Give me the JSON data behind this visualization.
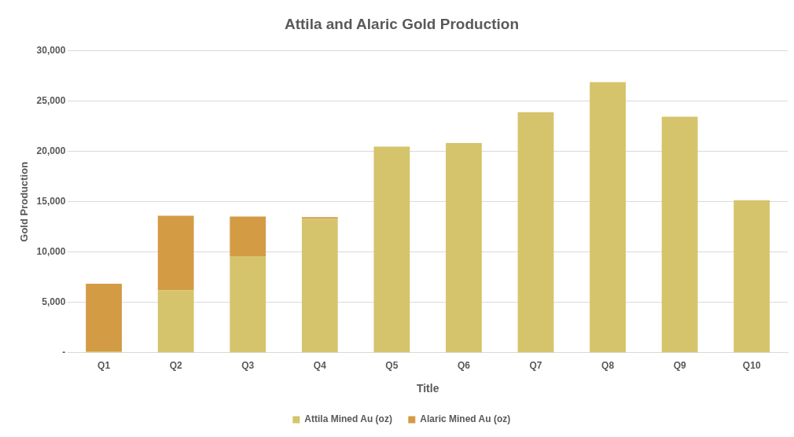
{
  "chart_data": {
    "type": "bar",
    "title": "Attila and Alaric Gold Production",
    "xlabel": "Title",
    "ylabel": "Gold Production",
    "categories": [
      "Q1",
      "Q2",
      "Q3",
      "Q4",
      "Q5",
      "Q6",
      "Q7",
      "Q8",
      "Q9",
      "Q10"
    ],
    "series": [
      {
        "name": "Attila Mined Au (oz)",
        "color": "#d5c46b",
        "values": [
          150,
          6220,
          9600,
          13320,
          20500,
          20840,
          23910,
          26900,
          23470,
          15160
        ]
      },
      {
        "name": "Alaric Mined Au (oz)",
        "color": "#d49b45",
        "values": [
          6700,
          7390,
          3930,
          160,
          null,
          null,
          null,
          null,
          null,
          null
        ]
      }
    ],
    "stacked": true,
    "ylim": [
      0,
      30000
    ],
    "yticks": [
      {
        "value": 0,
        "label": "-"
      },
      {
        "value": 5000,
        "label": "5,000"
      },
      {
        "value": 10000,
        "label": "10,000"
      },
      {
        "value": 15000,
        "label": "15,000"
      },
      {
        "value": 20000,
        "label": "20,000"
      },
      {
        "value": 25000,
        "label": "25,000"
      },
      {
        "value": 30000,
        "label": "30,000"
      }
    ],
    "grid": "y",
    "legend": "bottom"
  }
}
